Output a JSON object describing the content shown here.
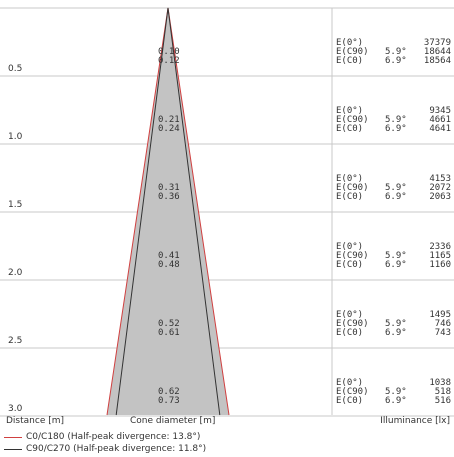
{
  "chart_data": {
    "type": "cone-diagram",
    "distances": [
      "0.5",
      "1.0",
      "1.5",
      "2.0",
      "2.5",
      "3.0"
    ],
    "distance_values": [
      0.5,
      1.0,
      1.5,
      2.0,
      2.5,
      3.0
    ],
    "cone_diameters": [
      {
        "c90": "0.10",
        "c0": "0.12",
        "c90_value": 0.1,
        "c0_value": 0.12
      },
      {
        "c90": "0.21",
        "c0": "0.24",
        "c90_value": 0.21,
        "c0_value": 0.24
      },
      {
        "c90": "0.31",
        "c0": "0.36",
        "c90_value": 0.31,
        "c0_value": 0.36
      },
      {
        "c90": "0.41",
        "c0": "0.48",
        "c90_value": 0.41,
        "c0_value": 0.48
      },
      {
        "c90": "0.52",
        "c0": "0.61",
        "c90_value": 0.52,
        "c0_value": 0.61
      },
      {
        "c90": "0.62",
        "c0": "0.73",
        "c90_value": 0.62,
        "c0_value": 0.73
      }
    ],
    "illuminance_labels": {
      "e0": "E(0°)",
      "ec90": "E(C90)",
      "ec0": "E(C0)"
    },
    "angles": {
      "c90": "5.9°",
      "c0": "6.9°"
    },
    "illuminance": [
      {
        "e0": "37379",
        "ec90": "18644",
        "ec0": "18564"
      },
      {
        "e0": "9345",
        "ec90": "4661",
        "ec0": "4641"
      },
      {
        "e0": "4153",
        "ec90": "2072",
        "ec0": "2063"
      },
      {
        "e0": "2336",
        "ec90": "1165",
        "ec0": "1160"
      },
      {
        "e0": "1495",
        "ec90": "746",
        "ec0": "743"
      },
      {
        "e0": "1038",
        "ec90": "518",
        "ec0": "516"
      }
    ],
    "axis_labels": {
      "distance": "Distance [m]",
      "cone": "Cone diameter [m]",
      "illuminance": "Illuminance [lx]"
    },
    "legend": [
      {
        "label": "C0/C180 (Half-peak divergence: 13.8°)",
        "color": "#d04040"
      },
      {
        "label": "C90/C270 (Half-peak divergence: 11.8°)",
        "color": "#333333"
      }
    ],
    "colors": {
      "grid": "#c8c8c8",
      "cone_fill": "#c3c3c3",
      "c0_line": "#d04040",
      "c90_line": "#333333"
    }
  }
}
